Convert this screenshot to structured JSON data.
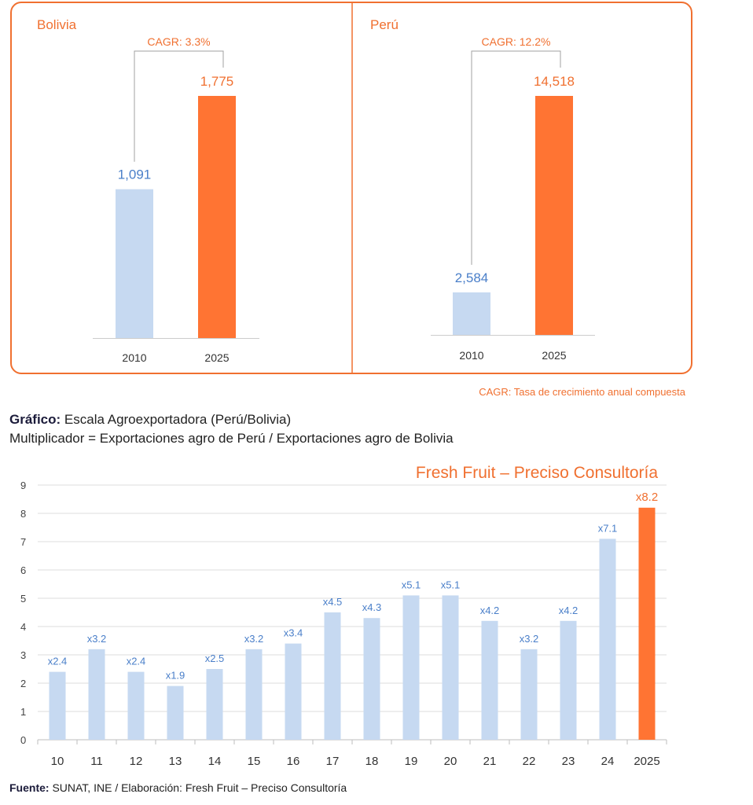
{
  "colors": {
    "base": "#c6d9f1",
    "highlight": "#ff7433",
    "label_blue": "#4a7fc9",
    "accent": "#f07030"
  },
  "top_panels": [
    {
      "title": "Bolivia",
      "cagr_label": "CAGR: 3.3%",
      "bars": [
        {
          "year": "2010",
          "value": 1091,
          "label": "1,091"
        },
        {
          "year": "2025",
          "value": 1775,
          "label": "1,775"
        }
      ]
    },
    {
      "title": "Perú",
      "cagr_label": "CAGR: 12.2%",
      "bars": [
        {
          "year": "2010",
          "value": 2584,
          "label": "2,584"
        },
        {
          "year": "2025",
          "value": 14518,
          "label": "14,518"
        }
      ]
    }
  ],
  "cagr_note": "CAGR: Tasa de crecimiento anual compuesta",
  "caption": {
    "bold": "Gráfico:",
    "line1": "Escala Agroexportadora (Perú/Bolivia)",
    "line2": "Multiplicador = Exportaciones agro de Perú / Exportaciones agro de Bolivia"
  },
  "chart_data": {
    "type": "bar",
    "title": "Fresh Fruit – Preciso Consultoría",
    "categories": [
      "10",
      "11",
      "12",
      "13",
      "14",
      "15",
      "16",
      "17",
      "18",
      "19",
      "20",
      "21",
      "22",
      "23",
      "24",
      "2025"
    ],
    "values": [
      2.4,
      3.2,
      2.4,
      1.9,
      2.5,
      3.2,
      3.4,
      4.5,
      4.3,
      5.1,
      5.1,
      4.2,
      3.2,
      4.2,
      7.1,
      8.2
    ],
    "data_labels": [
      "x2.4",
      "x3.2",
      "x2.4",
      "x1.9",
      "x2.5",
      "x3.2",
      "x3.4",
      "x4.5",
      "x4.3",
      "x5.1",
      "x5.1",
      "x4.2",
      "x3.2",
      "x4.2",
      "x7.1",
      "x8.2"
    ],
    "highlight_index": 15,
    "ylim": [
      0,
      9
    ],
    "yticks": [
      0,
      1,
      2,
      3,
      4,
      5,
      6,
      7,
      8,
      9
    ],
    "grid": true
  },
  "source": {
    "bold": "Fuente:",
    "text": "SUNAT, INE / Elaboración: Fresh Fruit – Preciso Consultoría"
  }
}
